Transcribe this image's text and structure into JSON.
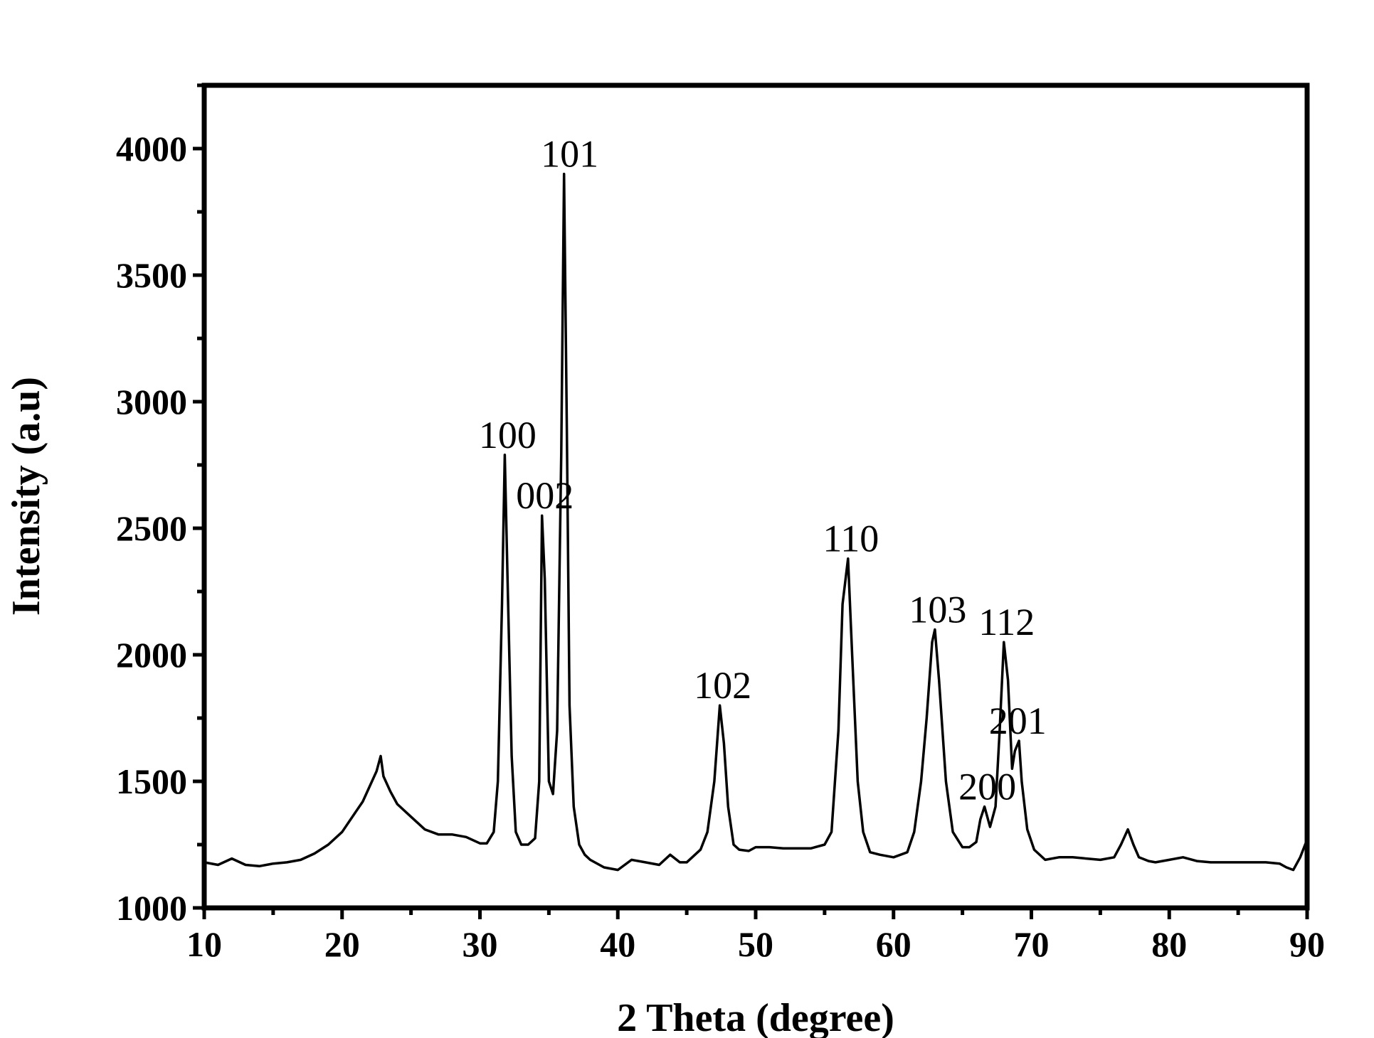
{
  "chart_data": {
    "type": "line",
    "title": "",
    "xlabel": "2 Theta (degree)",
    "ylabel": "Intensity (a.u)",
    "xlim": [
      10,
      90
    ],
    "ylim": [
      1000,
      4250
    ],
    "x_ticks": [
      10,
      20,
      30,
      40,
      50,
      60,
      70,
      80,
      90
    ],
    "x_tick_labels": [
      "10",
      "20",
      "30",
      "40",
      "50",
      "60",
      "70",
      "80",
      "90"
    ],
    "y_ticks": [
      1000,
      1500,
      2000,
      2500,
      3000,
      3500,
      4000
    ],
    "y_tick_labels": [
      "1000",
      "1500",
      "2000",
      "2500",
      "3000",
      "3500",
      "4000"
    ],
    "grid": false,
    "legend": "none",
    "line_color": "#000000",
    "series": [
      {
        "x": [
          10,
          11,
          12,
          13,
          14,
          15,
          16,
          17,
          18,
          19,
          20,
          21,
          21.5,
          22,
          22.5,
          22.8,
          23,
          23.5,
          24,
          25,
          26,
          27,
          28,
          29,
          30,
          30.5,
          31,
          31.3,
          31.6,
          31.8,
          32,
          32.3,
          32.6,
          33,
          33.5,
          34,
          34.3,
          34.5,
          34.7,
          35,
          35.3,
          35.6,
          35.9,
          36.1,
          36.3,
          36.5,
          36.8,
          37.2,
          37.6,
          38,
          39,
          40,
          41,
          42,
          43,
          43.8,
          44.5,
          45,
          46,
          46.5,
          47,
          47.4,
          47.7,
          48,
          48.4,
          48.8,
          49.5,
          50,
          51,
          52,
          53,
          54,
          55,
          55.5,
          56,
          56.3,
          56.7,
          57,
          57.4,
          57.8,
          58.3,
          59,
          60,
          61,
          61.5,
          62,
          62.4,
          62.8,
          63,
          63.3,
          63.8,
          64.3,
          65,
          65.5,
          66,
          66.3,
          66.6,
          67,
          67.4,
          67.7,
          68,
          68.3,
          68.6,
          68.8,
          69.1,
          69.3,
          69.7,
          70.2,
          71,
          72,
          73,
          74,
          75,
          76,
          76.5,
          77,
          77.4,
          77.8,
          78.5,
          79,
          80,
          81,
          82,
          83,
          84,
          85,
          86,
          87,
          88,
          88.5,
          89,
          89.5,
          90
        ],
        "y": [
          1180,
          1170,
          1195,
          1170,
          1165,
          1175,
          1180,
          1190,
          1215,
          1250,
          1300,
          1380,
          1420,
          1480,
          1540,
          1600,
          1520,
          1460,
          1410,
          1360,
          1310,
          1290,
          1290,
          1280,
          1255,
          1255,
          1300,
          1500,
          2200,
          2790,
          2300,
          1600,
          1300,
          1250,
          1250,
          1275,
          1500,
          2550,
          2300,
          1500,
          1450,
          1700,
          2800,
          3900,
          2900,
          1800,
          1400,
          1250,
          1210,
          1190,
          1160,
          1150,
          1190,
          1180,
          1170,
          1210,
          1180,
          1180,
          1230,
          1300,
          1500,
          1800,
          1650,
          1400,
          1250,
          1230,
          1225,
          1240,
          1240,
          1235,
          1235,
          1235,
          1250,
          1300,
          1700,
          2200,
          2380,
          2000,
          1500,
          1300,
          1220,
          1210,
          1200,
          1220,
          1300,
          1500,
          1750,
          2050,
          2100,
          1900,
          1500,
          1300,
          1240,
          1240,
          1260,
          1350,
          1400,
          1320,
          1400,
          1700,
          2050,
          1900,
          1550,
          1620,
          1660,
          1500,
          1310,
          1230,
          1190,
          1200,
          1200,
          1195,
          1190,
          1200,
          1250,
          1310,
          1250,
          1200,
          1185,
          1180,
          1190,
          1200,
          1185,
          1180,
          1180,
          1180,
          1180,
          1180,
          1175,
          1160,
          1150,
          1200,
          1270
        ]
      }
    ],
    "annotations": [
      {
        "text": "100",
        "x": 31.8,
        "y": 2790
      },
      {
        "text": "002",
        "x": 34.5,
        "y": 2550
      },
      {
        "text": "101",
        "x": 36.3,
        "y": 3900
      },
      {
        "text": "102",
        "x": 47.4,
        "y": 1800
      },
      {
        "text": "110",
        "x": 56.7,
        "y": 2380
      },
      {
        "text": "103",
        "x": 63.0,
        "y": 2100
      },
      {
        "text": "200",
        "x": 66.6,
        "y": 1400
      },
      {
        "text": "112",
        "x": 68.0,
        "y": 2050
      },
      {
        "text": "201",
        "x": 68.8,
        "y": 1660
      }
    ]
  }
}
